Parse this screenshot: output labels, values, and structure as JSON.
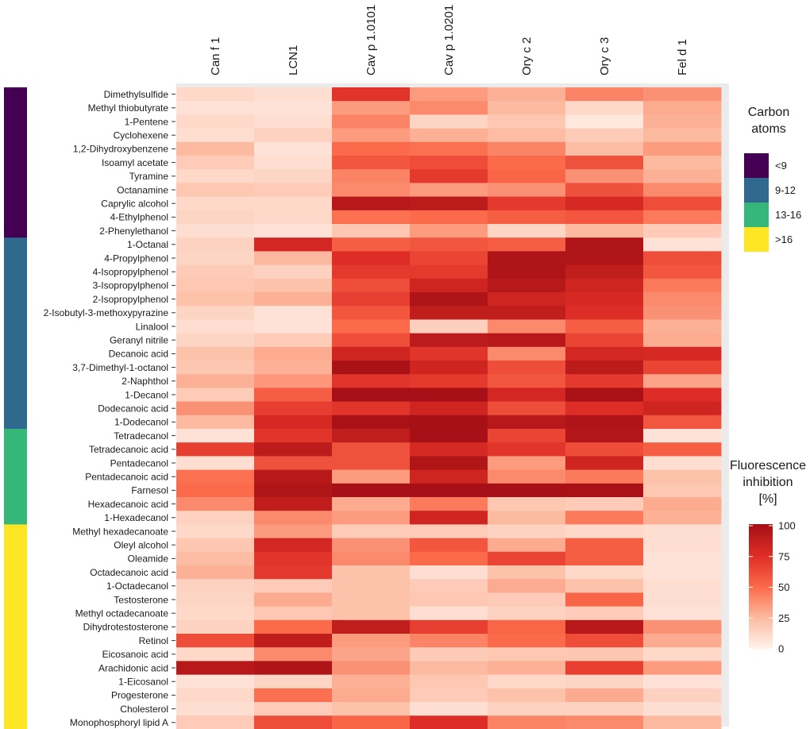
{
  "chart_data": {
    "type": "heatmap",
    "title": "",
    "x_categories": [
      "Can f 1",
      "LCN1",
      "Cav p 1.0101",
      "Cav p 1.0201",
      "Ory c 2",
      "Ory c 3",
      "Fel d 1"
    ],
    "y_categories": [
      "Dimethylsulfide",
      "Methyl thiobutyrate",
      "1-Pentene",
      "Cyclohexene",
      "1,2-Dihydroxybenzene",
      "Isoamyl acetate",
      "Tyramine",
      "Octanamine",
      "Caprylic alcohol",
      "4-Ethylphenol",
      "2-Phenylethanol",
      "1-Octanal",
      "4-Propylphenol",
      "4-Isopropylphenol",
      "3-Isopropylphenol",
      "2-Isopropylphenol",
      "2-Isobutyl-3-methoxypyrazine",
      "Linalool",
      "Geranyl nitrile",
      "Decanoic acid",
      "3,7-Dimethyl-1-octanol",
      "2-Naphthol",
      "1-Decanol",
      "Dodecanoic acid",
      "1-Dodecanol",
      "Tetradecanol",
      "Tetradecanoic acid",
      "Pentadecanol",
      "Pentadecanoic acid",
      "Farnesol",
      "Hexadecanoic acid",
      "1-Hexadecanol",
      "Methyl hexadecanoate",
      "Oleyl alcohol",
      "Oleamide",
      "Octadecanoic acid",
      "1-Octadecanol",
      "Testosterone",
      "Methyl octadecanoate",
      "Dihydrotestosterone",
      "Retinol",
      "Eicosanoic acid",
      "Arachidonic acid",
      "1-Eicosanol",
      "Progesterone",
      "Cholesterol",
      "Monophosphoryl lipid A"
    ],
    "values": [
      [
        12,
        10,
        72,
        35,
        28,
        42,
        38
      ],
      [
        8,
        8,
        35,
        40,
        25,
        12,
        30
      ],
      [
        12,
        10,
        42,
        14,
        20,
        6,
        28
      ],
      [
        10,
        15,
        35,
        28,
        24,
        18,
        25
      ],
      [
        25,
        8,
        50,
        48,
        42,
        24,
        35
      ],
      [
        18,
        10,
        58,
        62,
        50,
        60,
        25
      ],
      [
        12,
        14,
        42,
        70,
        52,
        38,
        28
      ],
      [
        20,
        18,
        40,
        35,
        38,
        60,
        40
      ],
      [
        12,
        12,
        92,
        90,
        70,
        78,
        62
      ],
      [
        14,
        12,
        48,
        50,
        55,
        58,
        45
      ],
      [
        10,
        8,
        20,
        35,
        14,
        25,
        18
      ],
      [
        15,
        80,
        55,
        58,
        55,
        95,
        8
      ],
      [
        14,
        26,
        75,
        65,
        96,
        95,
        62
      ],
      [
        18,
        15,
        70,
        70,
        96,
        88,
        58
      ],
      [
        20,
        22,
        62,
        82,
        92,
        82,
        45
      ],
      [
        22,
        28,
        68,
        96,
        82,
        78,
        40
      ],
      [
        14,
        8,
        58,
        88,
        88,
        75,
        38
      ],
      [
        10,
        8,
        50,
        16,
        40,
        55,
        28
      ],
      [
        14,
        18,
        62,
        90,
        92,
        65,
        30
      ],
      [
        22,
        30,
        82,
        72,
        40,
        80,
        78
      ],
      [
        20,
        28,
        98,
        82,
        62,
        90,
        65
      ],
      [
        28,
        36,
        72,
        70,
        58,
        70,
        32
      ],
      [
        18,
        55,
        99,
        99,
        80,
        98,
        75
      ],
      [
        38,
        68,
        72,
        82,
        62,
        75,
        82
      ],
      [
        25,
        78,
        98,
        99,
        92,
        96,
        58
      ],
      [
        8,
        72,
        88,
        99,
        65,
        94,
        8
      ],
      [
        68,
        90,
        60,
        78,
        72,
        62,
        55
      ],
      [
        10,
        60,
        60,
        95,
        35,
        82,
        10
      ],
      [
        48,
        92,
        35,
        82,
        40,
        45,
        22
      ],
      [
        50,
        95,
        99,
        99,
        99,
        98,
        20
      ],
      [
        40,
        88,
        30,
        45,
        20,
        18,
        30
      ],
      [
        15,
        40,
        35,
        82,
        25,
        45,
        28
      ],
      [
        12,
        35,
        18,
        18,
        15,
        12,
        10
      ],
      [
        20,
        80,
        38,
        58,
        30,
        55,
        10
      ],
      [
        24,
        72,
        40,
        50,
        65,
        55,
        8
      ],
      [
        28,
        70,
        22,
        10,
        22,
        12,
        8
      ],
      [
        15,
        18,
        22,
        18,
        30,
        22,
        10
      ],
      [
        14,
        30,
        22,
        20,
        18,
        52,
        10
      ],
      [
        12,
        20,
        22,
        10,
        15,
        18,
        8
      ],
      [
        15,
        50,
        88,
        68,
        52,
        92,
        38
      ],
      [
        62,
        88,
        35,
        42,
        50,
        62,
        30
      ],
      [
        12,
        40,
        32,
        18,
        20,
        20,
        12
      ],
      [
        92,
        96,
        38,
        25,
        28,
        68,
        35
      ],
      [
        8,
        14,
        28,
        20,
        12,
        14,
        8
      ],
      [
        12,
        48,
        30,
        18,
        22,
        30,
        15
      ],
      [
        10,
        18,
        22,
        10,
        15,
        15,
        10
      ],
      [
        18,
        62,
        52,
        75,
        42,
        40,
        25
      ]
    ],
    "color_scale": {
      "min": 0,
      "max": 100,
      "colors": [
        "#fff5f0",
        "#fcbba1",
        "#fb6a4a",
        "#de2d26",
        "#a50f15"
      ],
      "ticks": [
        "100",
        "75",
        "50",
        "25",
        "0"
      ],
      "title_line1": "Fluorescence",
      "title_line2": "inhibition",
      "title_line3": "[%]"
    },
    "carbon_legend": {
      "title_line1": "Carbon",
      "title_line2": "atoms",
      "groups": [
        {
          "label": "<9",
          "color": "#440154",
          "count": 11
        },
        {
          "label": "9-12",
          "color": "#31688e",
          "count": 14
        },
        {
          "label": "13-16",
          "color": "#35b779",
          "count": 7
        },
        {
          "label": ">16",
          "color": "#fde725",
          "count": 15
        }
      ]
    }
  }
}
